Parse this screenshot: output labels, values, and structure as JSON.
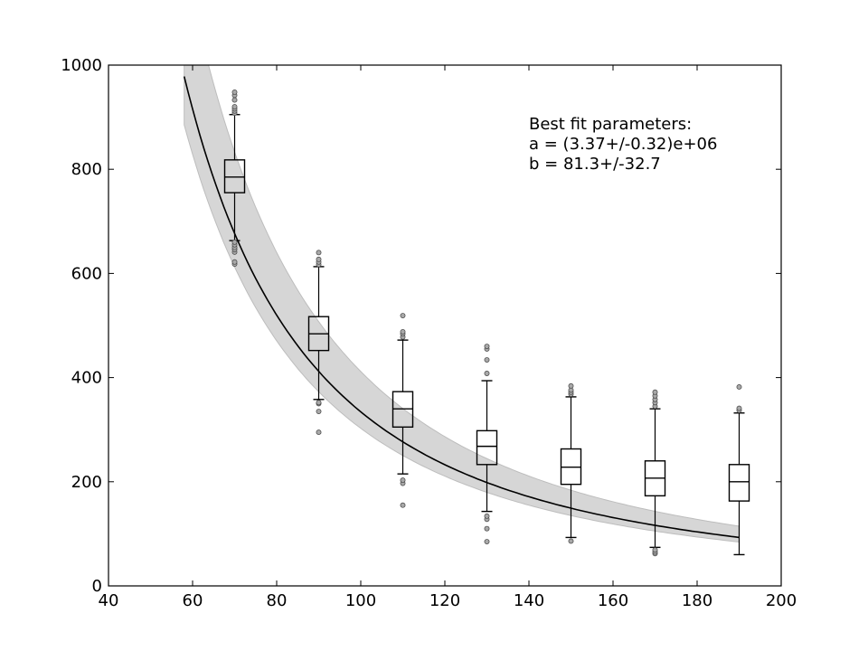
{
  "chart_data": {
    "type": "box",
    "xlim": [
      40,
      200
    ],
    "ylim": [
      0,
      1000
    ],
    "xticks": [
      40,
      60,
      80,
      100,
      120,
      140,
      160,
      180,
      200
    ],
    "yticks": [
      0,
      200,
      400,
      600,
      800,
      1000
    ],
    "annotation": {
      "title": "Best fit parameters:",
      "a_line": "a = (3.37+/-0.32)e+06",
      "b_line": "b = 81.3+/-32.7"
    },
    "fit": {
      "model": "y = a / (x^2 + b)",
      "a": 3370000,
      "b": 81.3,
      "x_start": 58,
      "x_end": 190,
      "band_lower_a": 3050000,
      "band_upper_a": 4150000
    },
    "boxes": [
      {
        "x": 70,
        "whisker_low": 663,
        "q1": 755,
        "median": 785,
        "q3": 818,
        "whisker_high": 905,
        "outliers": [
          618,
          622,
          641,
          646,
          650,
          655,
          660,
          908,
          912,
          916,
          920,
          933,
          942,
          948
        ]
      },
      {
        "x": 90,
        "whisker_low": 358,
        "q1": 452,
        "median": 484,
        "q3": 517,
        "whisker_high": 613,
        "outliers": [
          295,
          335,
          350,
          352,
          617,
          622,
          627,
          640
        ]
      },
      {
        "x": 110,
        "whisker_low": 215,
        "q1": 305,
        "median": 340,
        "q3": 373,
        "whisker_high": 472,
        "outliers": [
          155,
          197,
          203,
          478,
          484,
          488,
          519
        ]
      },
      {
        "x": 130,
        "whisker_low": 143,
        "q1": 233,
        "median": 268,
        "q3": 298,
        "whisker_high": 394,
        "outliers": [
          85,
          110,
          128,
          134,
          408,
          434,
          455,
          460
        ]
      },
      {
        "x": 150,
        "whisker_low": 93,
        "q1": 195,
        "median": 228,
        "q3": 263,
        "whisker_high": 363,
        "outliers": [
          86,
          368,
          372,
          376,
          384
        ]
      },
      {
        "x": 170,
        "whisker_low": 74,
        "q1": 173,
        "median": 207,
        "q3": 240,
        "whisker_high": 340,
        "outliers": [
          62,
          65,
          69,
          345,
          352,
          358,
          365,
          372
        ]
      },
      {
        "x": 190,
        "whisker_low": 60,
        "q1": 163,
        "median": 200,
        "q3": 233,
        "whisker_high": 332,
        "outliers": [
          337,
          341,
          382
        ]
      }
    ]
  }
}
